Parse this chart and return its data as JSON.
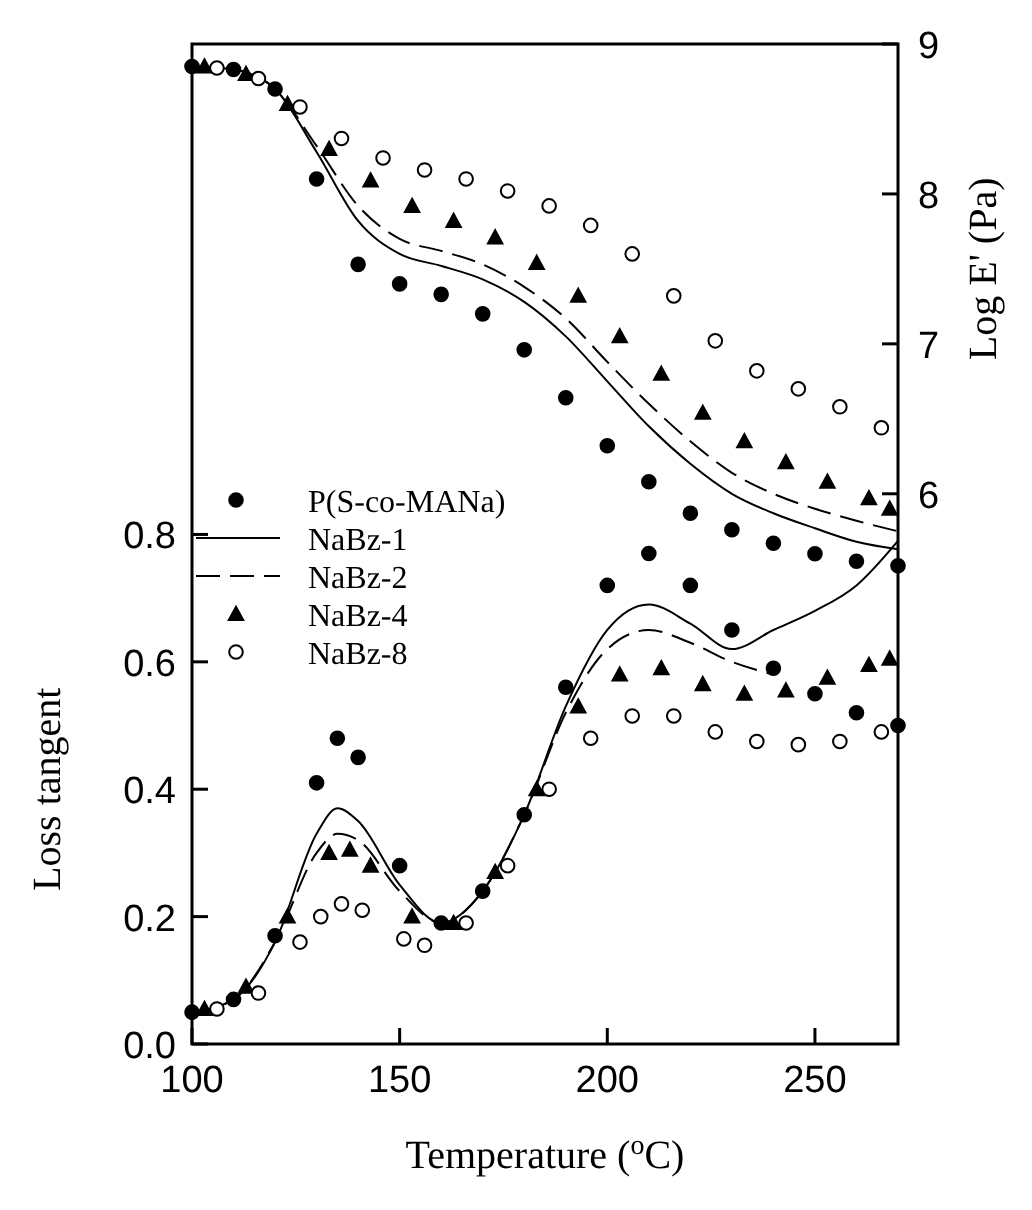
{
  "chart_data": {
    "type": "line",
    "xlabel": "Temperature ($^{o}$C)",
    "ylabel": "Loss tangent",
    "y2label": "Log E' (Pa)",
    "xlim": [
      100,
      270
    ],
    "xticks": [
      100,
      150,
      200,
      250
    ],
    "ylim": [
      0,
      1.57
    ],
    "yticks": [
      {
        "value": 0,
        "label": "0.0"
      },
      {
        "value": 0.2,
        "label": "0.2"
      },
      {
        "value": 0.4,
        "label": "0.4"
      },
      {
        "value": 0.6,
        "label": "0.6"
      },
      {
        "value": 0.8,
        "label": "0.8"
      }
    ],
    "y2lim": [
      2.33,
      9
    ],
    "y2ticks": [
      6,
      7,
      8,
      9
    ],
    "legend": "left",
    "grid": false,
    "series": [
      {
        "name": "P(S-co-MANa)",
        "type": "scatter",
        "marker": "circle",
        "color": "#000000",
        "x": [
          100,
          110,
          120,
          130,
          135,
          140,
          150,
          160,
          170,
          180,
          190,
          200,
          210,
          220,
          230,
          240,
          250,
          260,
          270
        ],
        "values": [
          0.05,
          0.07,
          0.17,
          0.41,
          0.48,
          0.45,
          0.28,
          0.19,
          0.24,
          0.36,
          0.56,
          0.72,
          0.77,
          0.72,
          0.65,
          0.59,
          0.55,
          0.52,
          0.5
        ]
      },
      {
        "name": "NaBz-1",
        "line_style": "solid",
        "color": "#000000",
        "x": [
          100,
          110,
          120,
          130,
          135,
          140,
          150,
          160,
          170,
          180,
          190,
          200,
          210,
          220,
          230,
          240,
          250,
          260,
          270
        ],
        "values": [
          0.05,
          0.07,
          0.16,
          0.33,
          0.37,
          0.35,
          0.25,
          0.19,
          0.24,
          0.36,
          0.53,
          0.65,
          0.69,
          0.66,
          0.62,
          0.65,
          0.68,
          0.72,
          0.79
        ]
      },
      {
        "name": "NaBz-2",
        "line_style": "dashed",
        "color": "#000000",
        "x": [
          100,
          110,
          120,
          130,
          135,
          140,
          150,
          160,
          170,
          180,
          190,
          200,
          210,
          220,
          230,
          240
        ],
        "values": [
          0.05,
          0.07,
          0.16,
          0.3,
          0.33,
          0.32,
          0.24,
          0.19,
          0.24,
          0.36,
          0.52,
          0.62,
          0.65,
          0.63,
          0.6,
          0.58
        ]
      },
      {
        "name": "NaBz-4",
        "type": "scatter",
        "marker": "triangle",
        "color": "#000000",
        "x": [
          103,
          113,
          123,
          133,
          138,
          143,
          153,
          163,
          173,
          183,
          193,
          203,
          213,
          223,
          233,
          243,
          253,
          263,
          268
        ],
        "values": [
          0.055,
          0.09,
          0.2,
          0.3,
          0.305,
          0.28,
          0.2,
          0.19,
          0.27,
          0.4,
          0.53,
          0.58,
          0.59,
          0.565,
          0.55,
          0.555,
          0.575,
          0.595,
          0.605
        ]
      },
      {
        "name": "NaBz-8",
        "type": "scatter",
        "marker": "circle",
        "color": "#ffffff",
        "x": [
          106,
          116,
          126,
          131,
          136,
          141,
          151,
          156,
          166,
          176,
          186,
          196,
          206,
          216,
          226,
          236,
          246,
          256,
          266
        ],
        "values": [
          0.055,
          0.08,
          0.16,
          0.2,
          0.22,
          0.21,
          0.165,
          0.155,
          0.19,
          0.28,
          0.4,
          0.48,
          0.515,
          0.515,
          0.49,
          0.475,
          0.47,
          0.475,
          0.49
        ]
      },
      {
        "type": "scatter",
        "marker": "circle",
        "axis": "y2",
        "color": "#000000",
        "x": [
          100,
          110,
          120,
          130,
          140,
          150,
          160,
          170,
          180,
          190,
          200,
          210,
          220,
          230,
          240,
          250,
          260,
          270
        ],
        "values": [
          8.85,
          8.83,
          8.7,
          8.1,
          7.53,
          7.4,
          7.33,
          7.2,
          6.96,
          6.64,
          6.32,
          6.08,
          5.87,
          5.76,
          5.67,
          5.6,
          5.55,
          5.52
        ]
      },
      {
        "line_style": "solid",
        "axis": "y2",
        "color": "#000000",
        "x": [
          100,
          110,
          120,
          130,
          140,
          150,
          160,
          170,
          180,
          190,
          200,
          210,
          220,
          230,
          240,
          250,
          260,
          270
        ],
        "values": [
          8.85,
          8.83,
          8.7,
          8.28,
          7.82,
          7.6,
          7.52,
          7.43,
          7.28,
          7.05,
          6.75,
          6.45,
          6.2,
          6.0,
          5.87,
          5.77,
          5.68,
          5.63
        ]
      },
      {
        "line_style": "dashed",
        "axis": "y2",
        "color": "#000000",
        "x": [
          100,
          110,
          120,
          130,
          140,
          150,
          160,
          170,
          180,
          190,
          200,
          210,
          220,
          230,
          240,
          250,
          260,
          270
        ],
        "values": [
          8.85,
          8.83,
          8.7,
          8.32,
          7.92,
          7.7,
          7.62,
          7.53,
          7.38,
          7.17,
          6.88,
          6.6,
          6.35,
          6.14,
          6.0,
          5.9,
          5.82,
          5.75
        ]
      },
      {
        "type": "scatter",
        "marker": "triangle",
        "axis": "y2",
        "color": "#000000",
        "x": [
          103,
          113,
          123,
          133,
          143,
          153,
          163,
          173,
          183,
          193,
          203,
          213,
          223,
          233,
          243,
          253,
          263,
          268
        ],
        "values": [
          8.85,
          8.8,
          8.6,
          8.3,
          8.09,
          7.92,
          7.82,
          7.71,
          7.54,
          7.32,
          7.05,
          6.8,
          6.54,
          6.35,
          6.21,
          6.08,
          5.97,
          5.9
        ]
      },
      {
        "type": "scatter",
        "marker": "circle",
        "axis": "y2",
        "color": "#ffffff",
        "x": [
          106,
          116,
          126,
          136,
          146,
          156,
          166,
          176,
          186,
          196,
          206,
          216,
          226,
          236,
          246,
          256,
          266
        ],
        "values": [
          8.84,
          8.77,
          8.58,
          8.37,
          8.24,
          8.16,
          8.1,
          8.02,
          7.92,
          7.79,
          7.6,
          7.32,
          7.02,
          6.82,
          6.7,
          6.58,
          6.44
        ]
      }
    ]
  }
}
